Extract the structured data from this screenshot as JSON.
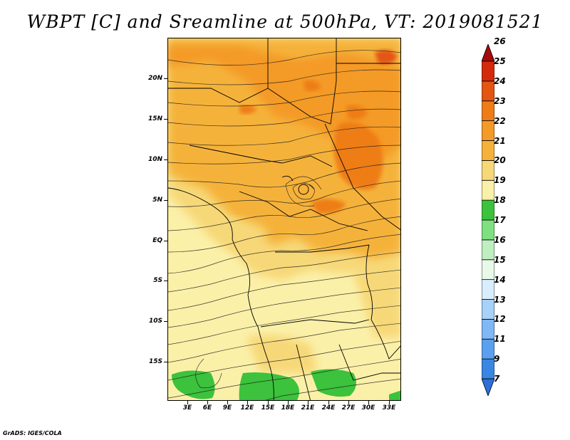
{
  "title": "WBPT [C] and Sreamline at 500hPa, VT: 2019081521",
  "credit": "GrADS: IGES/COLA",
  "lat_labels": [
    "20N",
    "15N",
    "10N",
    "5N",
    "EQ",
    "5S",
    "10S",
    "15S"
  ],
  "lon_labels": [
    "3E",
    "6E",
    "9E",
    "12E",
    "15E",
    "18E",
    "21E",
    "24E",
    "27E",
    "30E",
    "33E"
  ],
  "colorbar": {
    "labels": [
      "7",
      "9",
      "11",
      "12",
      "13",
      "14",
      "15",
      "16",
      "17",
      "18",
      "19",
      "20",
      "21",
      "22",
      "23",
      "24",
      "25",
      "26"
    ],
    "colors": [
      "#2c6fd6",
      "#3a86e3",
      "#5aa0ee",
      "#7fb8f5",
      "#a7d1f8",
      "#d8eefc",
      "#e9f9e9",
      "#bfeec0",
      "#7fe07f",
      "#3cc23c",
      "#fbf0a8",
      "#f7d878",
      "#f5b23a",
      "#f49a28",
      "#ee7d18",
      "#e45512",
      "#d42a0c",
      "#a40c0a"
    ]
  }
}
